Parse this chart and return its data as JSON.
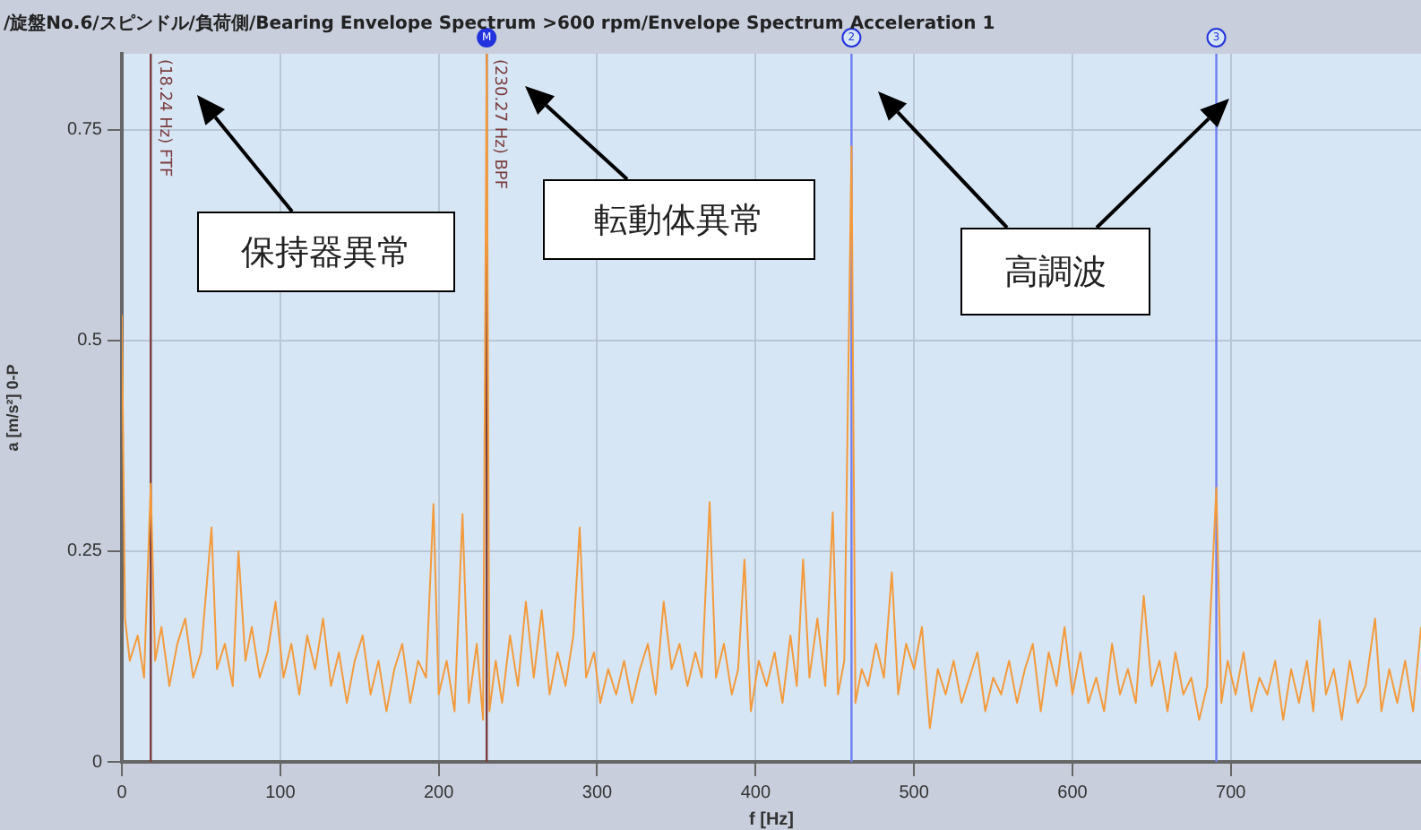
{
  "chart_data": {
    "type": "line",
    "title": "/旋盤No.6/スピンドル/負荷側/Bearing Envelope Spectrum >600 rpm/Envelope Spectrum Acceleration 1",
    "xlabel": "f [Hz]",
    "ylabel": "a [m/s²] 0-P",
    "xlim": [
      0,
      820
    ],
    "xticks": [
      0,
      100,
      200,
      300,
      400,
      500,
      600,
      700
    ],
    "ylim": [
      0,
      0.84
    ],
    "yticks": [
      0,
      0.25,
      0.5,
      0.75
    ],
    "grid": true,
    "legend": false,
    "marker": "none",
    "line_style": "solid",
    "x": [
      0,
      2,
      5,
      10,
      14,
      18.24,
      21,
      25,
      30,
      35,
      40,
      45,
      50,
      56.6,
      60,
      65,
      70,
      73.6,
      78,
      82,
      87,
      92,
      97,
      102,
      107,
      112,
      117,
      122,
      127,
      132,
      137,
      142,
      147,
      152,
      157,
      162,
      167,
      172,
      177,
      182,
      187,
      192,
      196.7,
      200,
      205,
      210,
      215,
      219,
      224,
      228,
      230.27,
      232,
      236,
      240,
      245,
      250,
      255,
      260,
      265,
      270,
      275,
      280,
      285,
      289,
      293,
      298,
      302,
      307,
      312,
      317,
      322,
      327,
      332,
      337,
      342,
      347,
      352,
      357,
      362,
      366,
      371,
      375,
      380,
      385,
      389,
      393,
      397,
      402,
      407,
      412,
      417,
      422,
      426,
      430,
      434,
      439,
      444,
      448.7,
      452,
      456,
      460.54,
      463,
      467,
      471,
      476,
      481,
      486,
      490,
      495,
      500,
      505,
      510,
      515,
      520,
      525,
      530,
      535,
      540,
      545,
      550,
      555,
      560,
      565,
      570,
      575,
      580,
      585,
      590,
      595,
      600,
      605,
      610,
      615,
      620,
      625,
      630,
      635,
      640,
      645,
      650,
      655,
      660,
      665,
      670,
      675,
      680,
      685,
      690.81,
      694,
      698,
      703,
      708,
      713,
      718,
      723,
      728,
      733,
      738,
      743,
      748,
      752,
      756,
      760,
      765,
      770,
      775,
      780,
      785,
      791,
      795,
      800,
      805,
      810,
      815,
      820
    ],
    "series": [
      {
        "color": "#f39b3c",
        "values": [
          0.53,
          0.17,
          0.12,
          0.15,
          0.1,
          0.33,
          0.12,
          0.16,
          0.09,
          0.14,
          0.17,
          0.1,
          0.13,
          0.278,
          0.11,
          0.14,
          0.09,
          0.25,
          0.12,
          0.16,
          0.1,
          0.13,
          0.19,
          0.1,
          0.14,
          0.08,
          0.15,
          0.11,
          0.17,
          0.09,
          0.13,
          0.07,
          0.12,
          0.15,
          0.08,
          0.12,
          0.06,
          0.11,
          0.14,
          0.07,
          0.12,
          0.1,
          0.306,
          0.08,
          0.12,
          0.06,
          0.294,
          0.07,
          0.14,
          0.05,
          0.84,
          0.06,
          0.12,
          0.07,
          0.15,
          0.09,
          0.19,
          0.1,
          0.18,
          0.08,
          0.13,
          0.09,
          0.15,
          0.278,
          0.1,
          0.13,
          0.07,
          0.11,
          0.08,
          0.12,
          0.07,
          0.11,
          0.14,
          0.08,
          0.19,
          0.11,
          0.14,
          0.09,
          0.13,
          0.1,
          0.308,
          0.1,
          0.14,
          0.08,
          0.11,
          0.24,
          0.06,
          0.12,
          0.09,
          0.13,
          0.07,
          0.15,
          0.09,
          0.24,
          0.1,
          0.17,
          0.09,
          0.296,
          0.08,
          0.12,
          0.73,
          0.07,
          0.11,
          0.09,
          0.14,
          0.1,
          0.225,
          0.08,
          0.14,
          0.11,
          0.16,
          0.04,
          0.11,
          0.08,
          0.12,
          0.07,
          0.1,
          0.13,
          0.06,
          0.1,
          0.08,
          0.12,
          0.07,
          0.11,
          0.14,
          0.06,
          0.13,
          0.09,
          0.16,
          0.08,
          0.13,
          0.07,
          0.1,
          0.06,
          0.14,
          0.08,
          0.11,
          0.07,
          0.197,
          0.09,
          0.12,
          0.06,
          0.13,
          0.08,
          0.1,
          0.05,
          0.09,
          0.325,
          0.07,
          0.12,
          0.08,
          0.13,
          0.06,
          0.1,
          0.08,
          0.12,
          0.05,
          0.11,
          0.07,
          0.12,
          0.06,
          0.168,
          0.08,
          0.11,
          0.05,
          0.12,
          0.07,
          0.09,
          0.17,
          0.06,
          0.11,
          0.07,
          0.12,
          0.06,
          0.16
        ]
      }
    ],
    "ref_lines": [
      {
        "axis": "x",
        "value": 18.24,
        "label": "(18.24 Hz) FTF",
        "color": "#7a3b3b"
      },
      {
        "axis": "x",
        "value": 230.27,
        "label": "(230.27 Hz) BPF",
        "color": "#7a3b3b"
      },
      {
        "axis": "x",
        "value": 460.54,
        "color": "#6f7ff0"
      },
      {
        "axis": "x",
        "value": 690.81,
        "color": "#6f7ff0"
      }
    ],
    "annotations": [
      "保持器異常",
      "転動体異常",
      "高調波",
      {
        "text": "M",
        "x": 230.27,
        "y": 0.84
      },
      {
        "text": "2",
        "x": 460.54,
        "y": 0.84
      },
      {
        "text": "3",
        "x": 690.81,
        "y": 0.84
      }
    ]
  }
}
